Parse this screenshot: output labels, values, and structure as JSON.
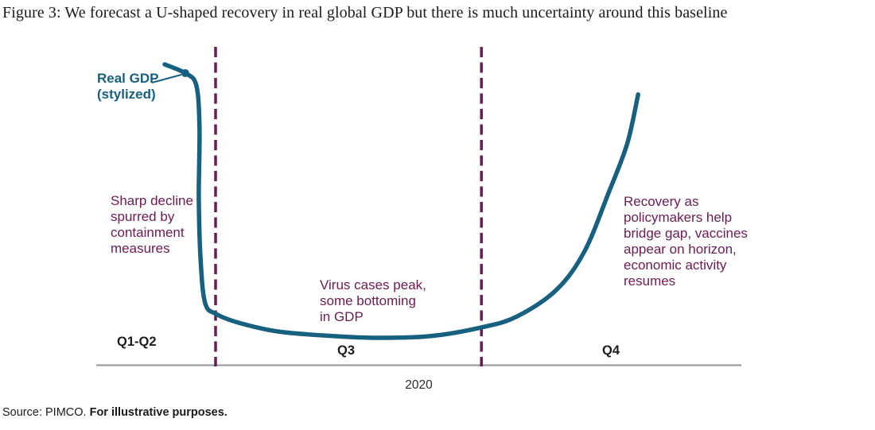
{
  "figure_title": "Figure 3: We forecast a U-shaped recovery in real global GDP but there is much uncertainty around this baseline",
  "chart_data": {
    "type": "line",
    "title": "Figure 3: We forecast a U-shaped recovery in real global GDP but there is much uncertainty around this baseline",
    "description": "Stylized U-shaped path of real global GDP over 2020; no numeric axes shown",
    "x_axis": {
      "tick_labels": [
        "Q1-Q2",
        "Q3",
        "Q4"
      ],
      "axis_label": "2020",
      "numeric_axis": false
    },
    "y_axis": {
      "visible": false,
      "implied_label": "Real GDP (stylized level)"
    },
    "grid": false,
    "legend": false,
    "series": [
      {
        "name": "Real GDP (stylized)",
        "points": [
          [
            0.106,
            100
          ],
          [
            0.138,
            96.8
          ],
          [
            0.155,
            92.4
          ],
          [
            0.16,
            77.0
          ],
          [
            0.159,
            51.0
          ],
          [
            0.162,
            27.6
          ],
          [
            0.169,
            12.5
          ],
          [
            0.186,
            8.7
          ],
          [
            0.221,
            5.5
          ],
          [
            0.282,
            2.3
          ],
          [
            0.369,
            0.6
          ],
          [
            0.437,
            0.0
          ],
          [
            0.517,
            0.6
          ],
          [
            0.597,
            3.8
          ],
          [
            0.652,
            7.8
          ],
          [
            0.714,
            17.7
          ],
          [
            0.757,
            31.7
          ],
          [
            0.794,
            52.9
          ],
          [
            0.823,
            71.0
          ],
          [
            0.84,
            89.0
          ]
        ]
      }
    ],
    "marker": {
      "x": 0.138,
      "y": 96.8
    },
    "phase_dividers_x": [
      0.185,
      0.597
    ]
  },
  "labels": {
    "series_label": "Real GDP\n(stylized)",
    "tick_q1q2": "Q1-Q2",
    "tick_q3": "Q3",
    "tick_q4": "Q4",
    "year": "2020"
  },
  "annotations": {
    "decline": "Sharp decline\nspurred by\ncontainment\nmeasures",
    "trough": "Virus cases peak,\nsome bottoming\nin GDP",
    "recovery": "Recovery as\npolicymakers help\nbridge gap, vaccines\nappear on horizon,\neconomic activity\nresumes"
  },
  "source": {
    "text": "Source: PIMCO. ",
    "emphasis": "For illustrative purposes."
  },
  "colors": {
    "curve": "#17607f",
    "annotation_text": "#6b1c52",
    "divider": "#6b1c52",
    "axis_line": "#8f959b",
    "text": "#1a1a1a"
  }
}
